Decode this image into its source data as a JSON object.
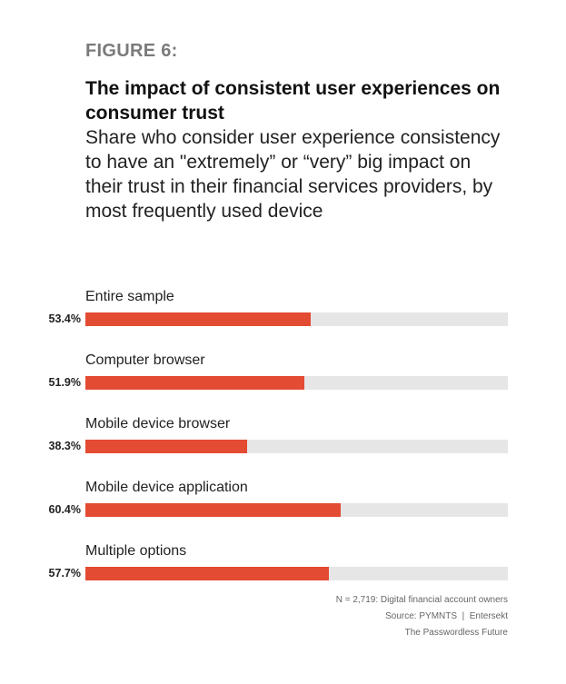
{
  "figure_label": "FIGURE 6:",
  "title": "The impact of consistent user experiences on consumer trust",
  "subtitle": "Share who consider user experience consistency to have an \"extremely” or “very” big impact on their trust in their financial services providers, by most frequently used device",
  "colors": {
    "bar": "#e34b33",
    "track": "#e6e6e7"
  },
  "chart_data": {
    "type": "bar",
    "orientation": "horizontal",
    "title": "The impact of consistent user experiences on consumer trust",
    "categories": [
      "Entire sample",
      "Computer browser",
      "Mobile device browser",
      "Mobile device application",
      "Multiple options"
    ],
    "values": [
      53.4,
      51.9,
      38.3,
      60.4,
      57.7
    ],
    "value_labels": [
      "53.4%",
      "51.9%",
      "38.3%",
      "60.4%",
      "57.7%"
    ],
    "xlim": [
      0,
      100
    ],
    "unit": "%",
    "grid": false,
    "legend": "none"
  },
  "notes": {
    "sample": "N = 2,719: Digital financial account owners",
    "source": "Source: PYMNTS  |  Entersekt",
    "report": "The Passwordless Future"
  }
}
